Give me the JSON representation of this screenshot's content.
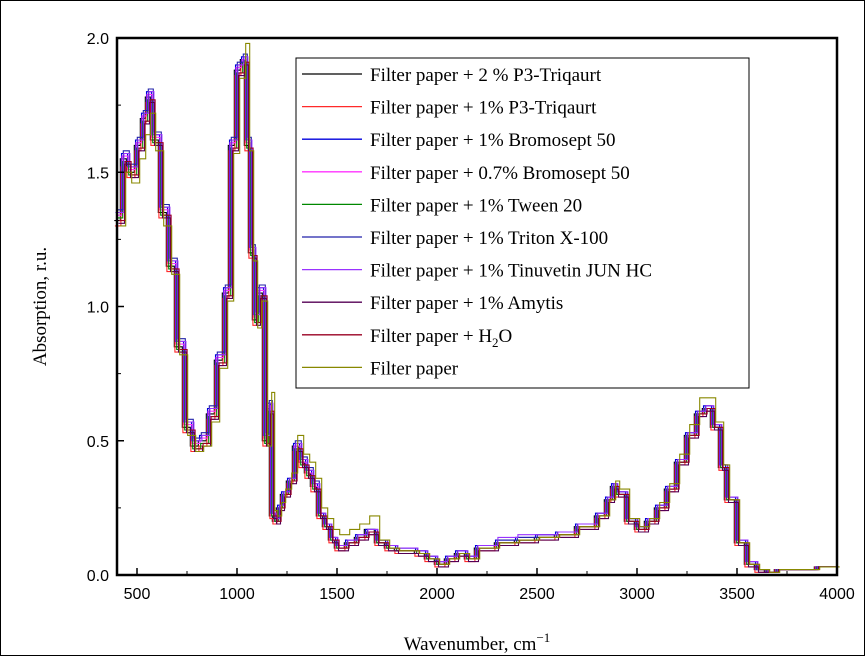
{
  "chart_data": {
    "type": "line",
    "xlabel": "Wavenumber, cm",
    "xlabel_sup": "−1",
    "ylabel": "Absorption, r.u.",
    "xlim": [
      400,
      4000
    ],
    "ylim": [
      0,
      2.0
    ],
    "x_ticks": [
      500,
      1000,
      1500,
      2000,
      2500,
      3000,
      3500,
      4000
    ],
    "y_ticks": [
      0.0,
      0.5,
      1.0,
      1.5,
      2.0
    ],
    "x_tick_labels": [
      "500",
      "1000",
      "1500",
      "2000",
      "2500",
      "3000",
      "3500",
      "4000"
    ],
    "y_tick_labels": [
      "0.0",
      "0.5",
      "1.0",
      "1.5",
      "2.0"
    ],
    "grid": false,
    "legend_position": "top-right",
    "x": [
      400,
      430,
      460,
      500,
      530,
      555,
      580,
      620,
      660,
      700,
      740,
      780,
      820,
      860,
      900,
      940,
      970,
      1000,
      1030,
      1050,
      1070,
      1090,
      1110,
      1140,
      1160,
      1175,
      1190,
      1210,
      1230,
      1260,
      1290,
      1320,
      1350,
      1380,
      1410,
      1440,
      1470,
      1500,
      1550,
      1600,
      1650,
      1700,
      1750,
      1800,
      1900,
      1950,
      2000,
      2050,
      2100,
      2150,
      2200,
      2300,
      2400,
      2500,
      2600,
      2700,
      2800,
      2850,
      2880,
      2900,
      2950,
      3000,
      3050,
      3100,
      3150,
      3200,
      3250,
      3300,
      3340,
      3380,
      3420,
      3450,
      3500,
      3550,
      3600,
      3650,
      3700,
      3800,
      3900,
      4000
    ],
    "series": [
      {
        "name": "Filter paper + 2 %  P3-Triqaurt",
        "color": "#000000",
        "values": [
          1.32,
          1.55,
          1.5,
          1.6,
          1.7,
          1.78,
          1.62,
          1.35,
          1.15,
          0.85,
          0.55,
          0.48,
          0.5,
          0.6,
          0.8,
          1.05,
          1.6,
          1.88,
          1.92,
          1.6,
          1.2,
          0.95,
          1.05,
          0.5,
          0.62,
          0.22,
          0.2,
          0.25,
          0.3,
          0.35,
          0.48,
          0.42,
          0.38,
          0.33,
          0.22,
          0.18,
          0.13,
          0.1,
          0.12,
          0.14,
          0.17,
          0.12,
          0.1,
          0.09,
          0.08,
          0.06,
          0.04,
          0.06,
          0.08,
          0.06,
          0.1,
          0.12,
          0.13,
          0.14,
          0.15,
          0.18,
          0.22,
          0.28,
          0.33,
          0.3,
          0.2,
          0.17,
          0.2,
          0.25,
          0.32,
          0.42,
          0.52,
          0.6,
          0.62,
          0.55,
          0.4,
          0.28,
          0.12,
          0.04,
          0.02,
          0.01,
          0.02,
          0.02,
          0.03,
          0.03
        ]
      },
      {
        "name": "Filter paper + 1%  P3-Triqaurt",
        "color": "#ff2a2a",
        "values": [
          1.3,
          1.52,
          1.48,
          1.58,
          1.68,
          1.76,
          1.6,
          1.33,
          1.13,
          0.83,
          0.53,
          0.46,
          0.48,
          0.58,
          0.78,
          1.03,
          1.58,
          1.86,
          1.9,
          1.58,
          1.18,
          0.93,
          1.03,
          0.48,
          0.6,
          0.21,
          0.19,
          0.24,
          0.29,
          0.34,
          0.46,
          0.4,
          0.36,
          0.31,
          0.21,
          0.17,
          0.12,
          0.09,
          0.11,
          0.13,
          0.15,
          0.11,
          0.09,
          0.08,
          0.07,
          0.05,
          0.03,
          0.05,
          0.07,
          0.05,
          0.09,
          0.11,
          0.12,
          0.13,
          0.14,
          0.17,
          0.21,
          0.27,
          0.32,
          0.29,
          0.19,
          0.16,
          0.19,
          0.24,
          0.31,
          0.41,
          0.51,
          0.59,
          0.61,
          0.54,
          0.39,
          0.27,
          0.11,
          0.03,
          0.01,
          0.01,
          0.02,
          0.02,
          0.03,
          0.03
        ]
      },
      {
        "name": "Filter paper + 1% Bromosept 50",
        "color": "#0000dd",
        "values": [
          1.35,
          1.57,
          1.52,
          1.62,
          1.72,
          1.8,
          1.64,
          1.37,
          1.17,
          0.87,
          0.57,
          0.5,
          0.52,
          0.62,
          0.82,
          1.07,
          1.62,
          1.9,
          1.93,
          1.62,
          1.22,
          0.97,
          1.07,
          0.52,
          0.64,
          0.23,
          0.21,
          0.26,
          0.31,
          0.36,
          0.49,
          0.43,
          0.39,
          0.34,
          0.23,
          0.19,
          0.14,
          0.11,
          0.13,
          0.15,
          0.17,
          0.13,
          0.11,
          0.1,
          0.09,
          0.07,
          0.05,
          0.07,
          0.09,
          0.07,
          0.11,
          0.13,
          0.14,
          0.15,
          0.16,
          0.19,
          0.23,
          0.29,
          0.34,
          0.31,
          0.21,
          0.18,
          0.21,
          0.26,
          0.33,
          0.43,
          0.53,
          0.61,
          0.63,
          0.56,
          0.41,
          0.29,
          0.13,
          0.05,
          0.02,
          0.01,
          0.02,
          0.02,
          0.03,
          0.03
        ]
      },
      {
        "name": "Filter paper + 0.7% Bromosept 50",
        "color": "#ff33ff",
        "values": [
          1.34,
          1.56,
          1.51,
          1.61,
          1.71,
          1.79,
          1.63,
          1.36,
          1.16,
          0.86,
          0.56,
          0.49,
          0.51,
          0.61,
          0.81,
          1.06,
          1.61,
          1.89,
          1.92,
          1.61,
          1.21,
          0.96,
          1.06,
          0.51,
          0.63,
          0.22,
          0.2,
          0.25,
          0.3,
          0.35,
          0.48,
          0.42,
          0.38,
          0.33,
          0.22,
          0.18,
          0.13,
          0.1,
          0.12,
          0.14,
          0.16,
          0.12,
          0.1,
          0.09,
          0.08,
          0.06,
          0.04,
          0.06,
          0.08,
          0.06,
          0.1,
          0.12,
          0.13,
          0.14,
          0.15,
          0.18,
          0.22,
          0.28,
          0.33,
          0.3,
          0.2,
          0.17,
          0.2,
          0.25,
          0.32,
          0.42,
          0.52,
          0.6,
          0.62,
          0.55,
          0.4,
          0.28,
          0.12,
          0.04,
          0.02,
          0.01,
          0.02,
          0.02,
          0.03,
          0.03
        ]
      },
      {
        "name": "Filter paper + 1% Tween 20",
        "color": "#008800",
        "values": [
          1.33,
          1.54,
          1.49,
          1.59,
          1.69,
          1.77,
          1.61,
          1.34,
          1.14,
          0.84,
          0.54,
          0.47,
          0.49,
          0.59,
          0.79,
          1.04,
          1.59,
          1.87,
          1.91,
          1.59,
          1.19,
          0.94,
          1.04,
          0.49,
          0.61,
          0.22,
          0.2,
          0.25,
          0.3,
          0.35,
          0.47,
          0.41,
          0.37,
          0.32,
          0.22,
          0.18,
          0.13,
          0.1,
          0.12,
          0.14,
          0.16,
          0.12,
          0.1,
          0.09,
          0.08,
          0.06,
          0.04,
          0.06,
          0.08,
          0.06,
          0.1,
          0.12,
          0.13,
          0.14,
          0.15,
          0.18,
          0.22,
          0.28,
          0.33,
          0.3,
          0.2,
          0.17,
          0.2,
          0.25,
          0.32,
          0.42,
          0.52,
          0.6,
          0.62,
          0.55,
          0.4,
          0.28,
          0.12,
          0.04,
          0.02,
          0.01,
          0.02,
          0.02,
          0.03,
          0.03
        ]
      },
      {
        "name": "Filter paper + 1% Triton X-100",
        "color": "#2222aa",
        "values": [
          1.36,
          1.58,
          1.53,
          1.63,
          1.73,
          1.81,
          1.65,
          1.38,
          1.18,
          0.88,
          0.58,
          0.51,
          0.53,
          0.63,
          0.83,
          1.08,
          1.63,
          1.91,
          1.94,
          1.63,
          1.23,
          0.98,
          1.08,
          0.53,
          0.65,
          0.23,
          0.21,
          0.26,
          0.31,
          0.36,
          0.5,
          0.44,
          0.4,
          0.35,
          0.23,
          0.19,
          0.14,
          0.11,
          0.13,
          0.15,
          0.17,
          0.13,
          0.11,
          0.1,
          0.09,
          0.07,
          0.05,
          0.07,
          0.09,
          0.07,
          0.11,
          0.13,
          0.14,
          0.15,
          0.16,
          0.19,
          0.23,
          0.29,
          0.34,
          0.31,
          0.21,
          0.18,
          0.21,
          0.26,
          0.33,
          0.43,
          0.53,
          0.61,
          0.63,
          0.56,
          0.41,
          0.29,
          0.13,
          0.05,
          0.02,
          0.01,
          0.02,
          0.02,
          0.03,
          0.03
        ]
      },
      {
        "name": "Filter paper + 1% Tinuvetin JUN HC",
        "color": "#9933ff",
        "values": [
          1.35,
          1.57,
          1.52,
          1.62,
          1.72,
          1.8,
          1.64,
          1.37,
          1.17,
          0.87,
          0.57,
          0.5,
          0.52,
          0.62,
          0.82,
          1.07,
          1.62,
          1.9,
          1.93,
          1.62,
          1.22,
          0.97,
          1.07,
          0.52,
          0.64,
          0.23,
          0.21,
          0.26,
          0.31,
          0.36,
          0.49,
          0.43,
          0.39,
          0.34,
          0.23,
          0.19,
          0.14,
          0.11,
          0.13,
          0.15,
          0.17,
          0.13,
          0.11,
          0.1,
          0.09,
          0.07,
          0.05,
          0.07,
          0.09,
          0.07,
          0.11,
          0.14,
          0.15,
          0.15,
          0.16,
          0.19,
          0.23,
          0.29,
          0.34,
          0.31,
          0.21,
          0.18,
          0.21,
          0.26,
          0.33,
          0.43,
          0.53,
          0.61,
          0.63,
          0.56,
          0.41,
          0.29,
          0.13,
          0.05,
          0.02,
          0.01,
          0.02,
          0.02,
          0.03,
          0.03
        ]
      },
      {
        "name": "Filter paper + 1% Amytis",
        "color": "#550055",
        "values": [
          1.31,
          1.53,
          1.48,
          1.58,
          1.68,
          1.76,
          1.6,
          1.33,
          1.13,
          0.83,
          0.53,
          0.46,
          0.48,
          0.58,
          0.78,
          1.03,
          1.58,
          1.86,
          1.9,
          1.58,
          1.18,
          0.93,
          1.03,
          0.48,
          0.6,
          0.21,
          0.19,
          0.24,
          0.29,
          0.34,
          0.46,
          0.4,
          0.36,
          0.31,
          0.21,
          0.17,
          0.12,
          0.09,
          0.11,
          0.13,
          0.15,
          0.11,
          0.09,
          0.08,
          0.07,
          0.05,
          0.03,
          0.05,
          0.07,
          0.05,
          0.09,
          0.11,
          0.12,
          0.13,
          0.14,
          0.17,
          0.21,
          0.27,
          0.32,
          0.29,
          0.19,
          0.16,
          0.19,
          0.24,
          0.31,
          0.41,
          0.51,
          0.59,
          0.61,
          0.54,
          0.39,
          0.27,
          0.11,
          0.03,
          0.01,
          0.01,
          0.02,
          0.02,
          0.03,
          0.03
        ]
      },
      {
        "name": "Filter paper + H",
        "name_sub": "2",
        "name_tail": "O",
        "color": "#990022",
        "values": [
          1.32,
          1.54,
          1.49,
          1.59,
          1.69,
          1.77,
          1.61,
          1.34,
          1.14,
          0.84,
          0.54,
          0.47,
          0.49,
          0.59,
          0.79,
          1.04,
          1.59,
          1.87,
          1.91,
          1.59,
          1.19,
          0.94,
          1.04,
          0.49,
          0.61,
          0.22,
          0.2,
          0.25,
          0.3,
          0.35,
          0.47,
          0.41,
          0.37,
          0.32,
          0.22,
          0.18,
          0.13,
          0.1,
          0.12,
          0.14,
          0.16,
          0.12,
          0.1,
          0.09,
          0.08,
          0.06,
          0.04,
          0.06,
          0.08,
          0.06,
          0.1,
          0.12,
          0.13,
          0.14,
          0.15,
          0.18,
          0.22,
          0.28,
          0.33,
          0.3,
          0.2,
          0.17,
          0.2,
          0.25,
          0.32,
          0.42,
          0.52,
          0.6,
          0.62,
          0.55,
          0.4,
          0.28,
          0.12,
          0.04,
          0.02,
          0.01,
          0.02,
          0.02,
          0.03,
          0.03
        ]
      },
      {
        "name": "Filter paper",
        "color": "#888800",
        "values": [
          1.3,
          1.5,
          1.46,
          1.55,
          1.64,
          1.72,
          1.58,
          1.3,
          1.12,
          0.82,
          0.52,
          0.46,
          0.48,
          0.57,
          0.77,
          1.02,
          1.57,
          1.85,
          1.98,
          1.58,
          1.17,
          0.92,
          1.02,
          0.48,
          0.68,
          0.24,
          0.22,
          0.27,
          0.32,
          0.38,
          0.52,
          0.45,
          0.42,
          0.36,
          0.25,
          0.21,
          0.17,
          0.15,
          0.17,
          0.19,
          0.22,
          0.13,
          0.1,
          0.09,
          0.08,
          0.06,
          0.04,
          0.06,
          0.08,
          0.06,
          0.1,
          0.12,
          0.13,
          0.14,
          0.15,
          0.18,
          0.22,
          0.28,
          0.35,
          0.32,
          0.21,
          0.18,
          0.21,
          0.27,
          0.34,
          0.45,
          0.56,
          0.66,
          0.66,
          0.57,
          0.41,
          0.28,
          0.12,
          0.04,
          0.02,
          0.01,
          0.02,
          0.02,
          0.03,
          0.03
        ]
      }
    ]
  }
}
